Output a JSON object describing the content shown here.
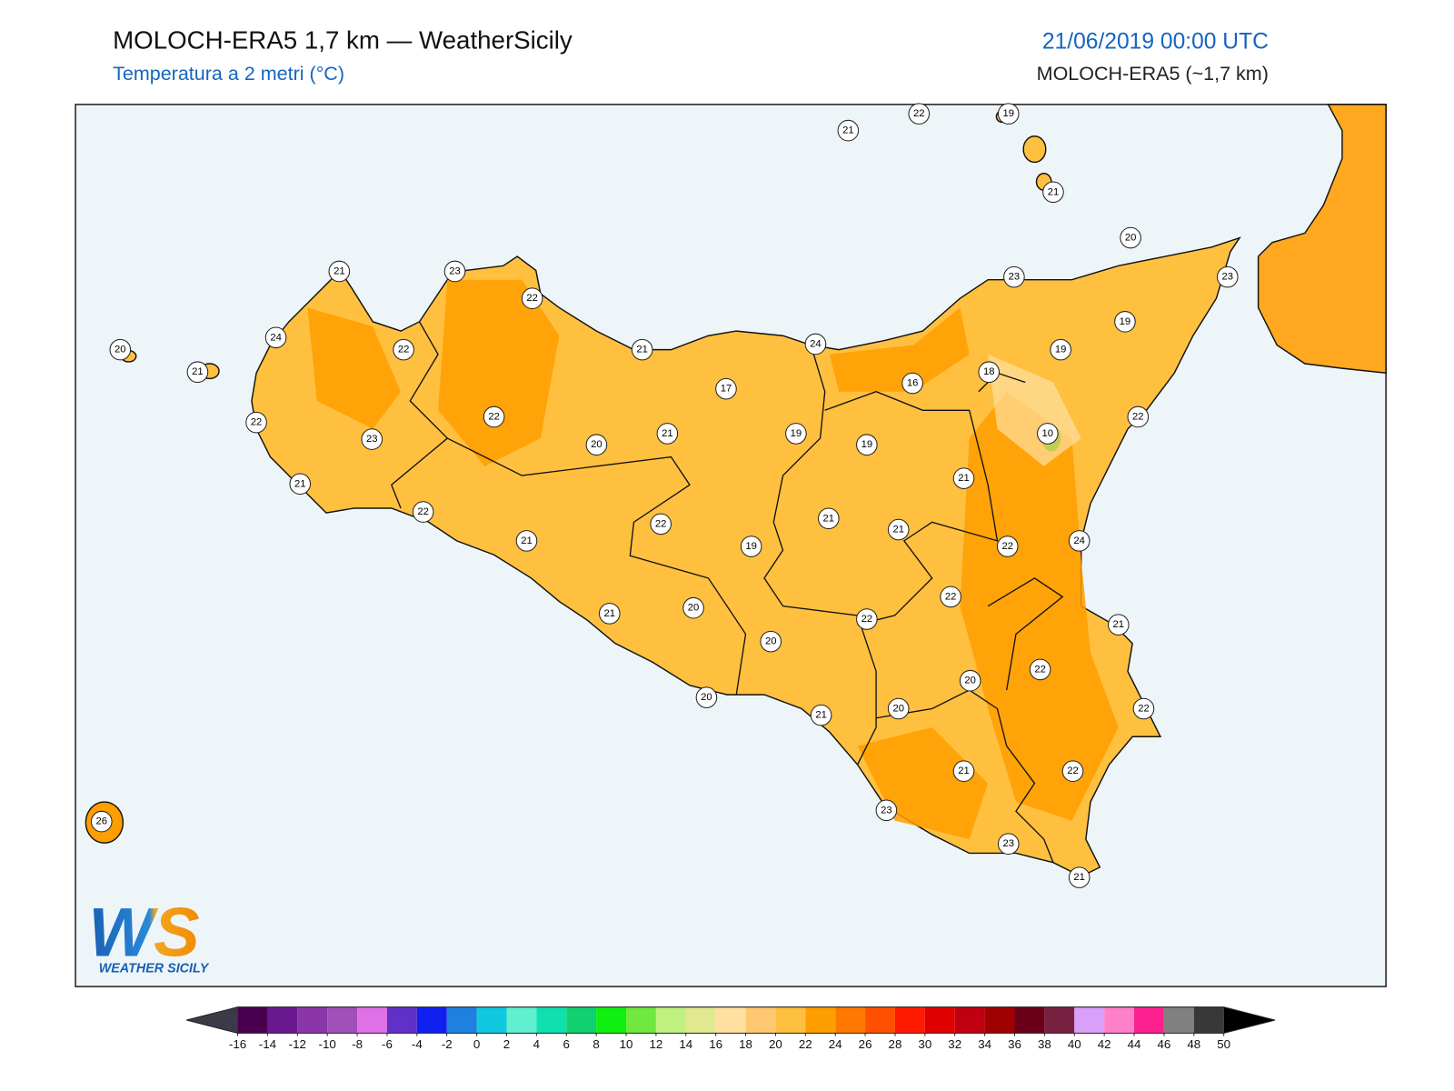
{
  "header": {
    "title": "MOLOCH-ERA5 1,7 km — WeatherSicily",
    "subtitle": "Temperatura a 2 metri (°C)",
    "date": "21/06/2019 00:00 UTC",
    "model": "MOLOCH-ERA5 (~1,7 km)"
  },
  "stations": [
    21,
    22,
    19,
    21,
    20,
    23,
    23,
    19,
    19,
    21,
    23,
    22,
    24,
    22,
    20,
    21,
    21,
    24,
    16,
    18,
    17,
    22,
    19,
    21,
    20,
    19,
    10,
    22,
    22,
    23,
    21,
    21,
    22,
    21,
    22,
    21,
    21,
    19,
    22,
    24,
    22,
    21,
    20,
    22,
    21,
    20,
    22,
    20,
    22,
    20,
    20,
    21,
    21,
    22,
    23,
    23,
    21,
    26
  ],
  "colorbar": {
    "ticks": [
      -16,
      -14,
      -12,
      -10,
      -8,
      -6,
      -4,
      -2,
      0,
      2,
      4,
      6,
      8,
      10,
      12,
      14,
      16,
      18,
      20,
      22,
      24,
      26,
      28,
      30,
      32,
      34,
      36,
      38,
      40,
      42,
      44,
      46,
      48,
      50
    ],
    "colors": [
      "#4a0050",
      "#6a1890",
      "#8a35a8",
      "#a050b8",
      "#e070e8",
      "#6030c8",
      "#1020f0",
      "#2080e0",
      "#10c8e0",
      "#60f0d0",
      "#10e0b0",
      "#10d070",
      "#10f010",
      "#70e840",
      "#c0f080",
      "#e0e890",
      "#ffe0a0",
      "#ffc870",
      "#ffc040",
      "#ff9e00",
      "#ff7800",
      "#ff5000",
      "#ff1a00",
      "#e00000",
      "#c00010",
      "#a00000",
      "#6a0018",
      "#782040",
      "#d8a0f8",
      "#ff80c8",
      "#ff2090",
      "#808080",
      "#383838"
    ],
    "under_color": "#3a3a48",
    "over_color": "#000000"
  },
  "logo": {
    "mark": "WS",
    "name": "WEATHER SICILY"
  }
}
